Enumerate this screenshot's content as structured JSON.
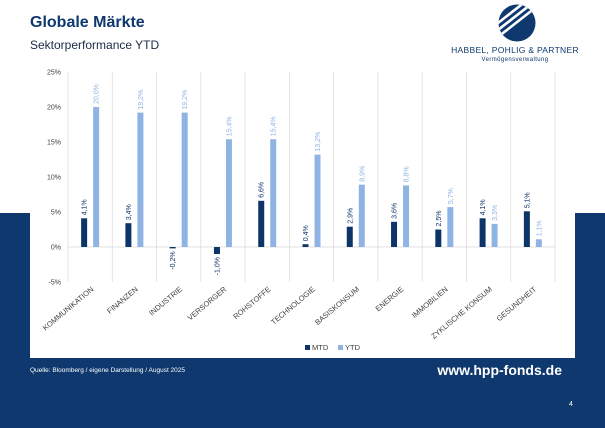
{
  "slide": {
    "title": "Globale Märkte",
    "subtitle": "Sektorperformance YTD",
    "source": "Quelle: Bloomberg / eigene Darstellung / August 2025",
    "website": "www.hpp-fonds.de",
    "page_number": "4"
  },
  "logo": {
    "icon": "striped-circle-logo",
    "company": "HABBEL, POHLIG & PARTNER",
    "tagline": "Vermögensverwaltung"
  },
  "colors": {
    "brand_navy": "#0e386e",
    "mtd": "#0d3468",
    "ytd": "#8fb4e3"
  },
  "chart_data": {
    "type": "bar",
    "categories": [
      "KOMMUNIKATION",
      "FINANZEN",
      "INDUSTRIE",
      "VERSORGER",
      "ROHSTOFFE",
      "TECHNOLOGIE",
      "BASISKONSUM",
      "ENERGIE",
      "IMMOBILIEN",
      "ZYKLISCHE KONSUM",
      "GESUNDHEIT"
    ],
    "series": [
      {
        "name": "MTD",
        "values": [
          4.1,
          3.4,
          -0.2,
          -1.0,
          6.6,
          0.4,
          2.9,
          3.6,
          2.5,
          4.1,
          5.1
        ],
        "labels": [
          "4,1%",
          "3,4%",
          "-0,2%",
          "-1,0%",
          "6,6%",
          "0,4%",
          "2,9%",
          "3,6%",
          "2,5%",
          "4,1%",
          "5,1%"
        ]
      },
      {
        "name": "YTD",
        "values": [
          20.0,
          19.2,
          19.2,
          15.4,
          15.4,
          13.2,
          8.9,
          8.8,
          5.7,
          3.3,
          1.1
        ],
        "labels": [
          "20,0%",
          "19,2%",
          "19,2%",
          "15,4%",
          "15,4%",
          "13,2%",
          "8,9%",
          "8,8%",
          "5,7%",
          "3,3%",
          "1,1%"
        ]
      }
    ],
    "ylim": [
      -5,
      25
    ],
    "yticks": [
      25,
      20,
      15,
      10,
      5,
      0,
      -5
    ],
    "ytick_labels": [
      "25%",
      "20%",
      "15%",
      "10%",
      "5%",
      "0%",
      "-5%"
    ],
    "grid": true,
    "legend": "bottom"
  }
}
